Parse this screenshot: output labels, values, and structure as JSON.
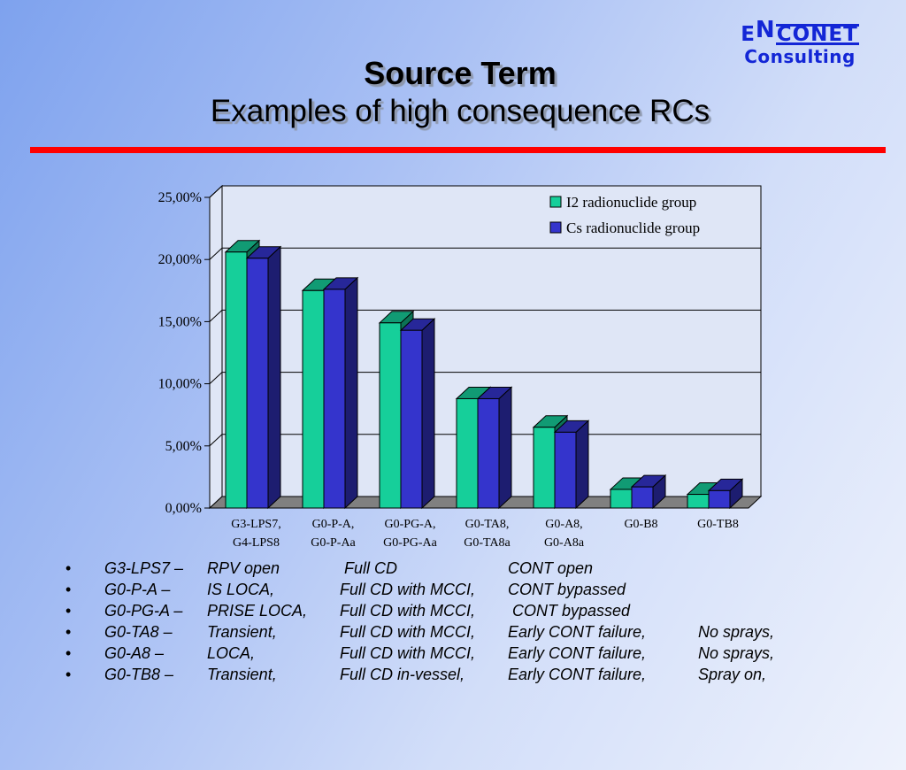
{
  "logo": {
    "top_e": "E",
    "top_n": "N",
    "top_rest": "CONET",
    "bottom": "Consulting"
  },
  "title": {
    "line1": "Source Term",
    "line2": "Examples of high consequence RCs"
  },
  "chart_data": {
    "type": "bar",
    "categories": [
      [
        "G3-LPS7,",
        "G4-LPS8"
      ],
      [
        "G0-P-A,",
        "G0-P-Aa"
      ],
      [
        "G0-PG-A,",
        "G0-PG-Aa"
      ],
      [
        "G0-TA8,",
        "G0-TA8a"
      ],
      [
        "G0-A8,",
        "G0-A8a"
      ],
      [
        "G0-B8",
        ""
      ],
      [
        "G0-TB8",
        ""
      ]
    ],
    "series": [
      {
        "name": "I2 radionuclide group",
        "values": [
          20.6,
          17.5,
          14.9,
          8.8,
          6.5,
          1.5,
          1.1
        ],
        "color": "#16cf9a"
      },
      {
        "name": "Cs radionuclide group",
        "values": [
          20.1,
          17.6,
          14.3,
          8.8,
          6.1,
          1.7,
          1.4
        ],
        "color": "#3434cc"
      }
    ],
    "ylim": [
      0,
      25
    ],
    "yticks": [
      "0,00%",
      "5,00%",
      "10,00%",
      "15,00%",
      "20,00%",
      "25,00%"
    ],
    "grid": true,
    "legend": "top-right"
  },
  "bullets": [
    {
      "id": "G3-LPS7 –",
      "c1": "RPV open",
      "c2": " Full CD",
      "c3": "CONT open",
      "c4": ""
    },
    {
      "id": "G0-P-A –",
      "c1": "IS LOCA,",
      "c2": "Full CD with MCCI,",
      "c3": "CONT bypassed",
      "c4": ""
    },
    {
      "id": "G0-PG-A –",
      "c1": "PRISE LOCA,",
      "c2": "Full CD with MCCI,",
      "c3": " CONT bypassed",
      "c4": ""
    },
    {
      "id": "G0-TA8 –",
      "c1": "Transient,",
      "c2": "Full CD with MCCI,",
      "c3": "Early CONT failure,",
      "c4": "No sprays,"
    },
    {
      "id": "G0-A8 –",
      "c1": "LOCA,",
      "c2": "Full CD with MCCI,",
      "c3": "Early CONT failure,",
      "c4": "No sprays,"
    },
    {
      "id": "G0-TB8 –",
      "c1": "Transient,",
      "c2": "Full CD in-vessel,",
      "c3": "Early CONT failure,",
      "c4": "Spray on,"
    }
  ]
}
